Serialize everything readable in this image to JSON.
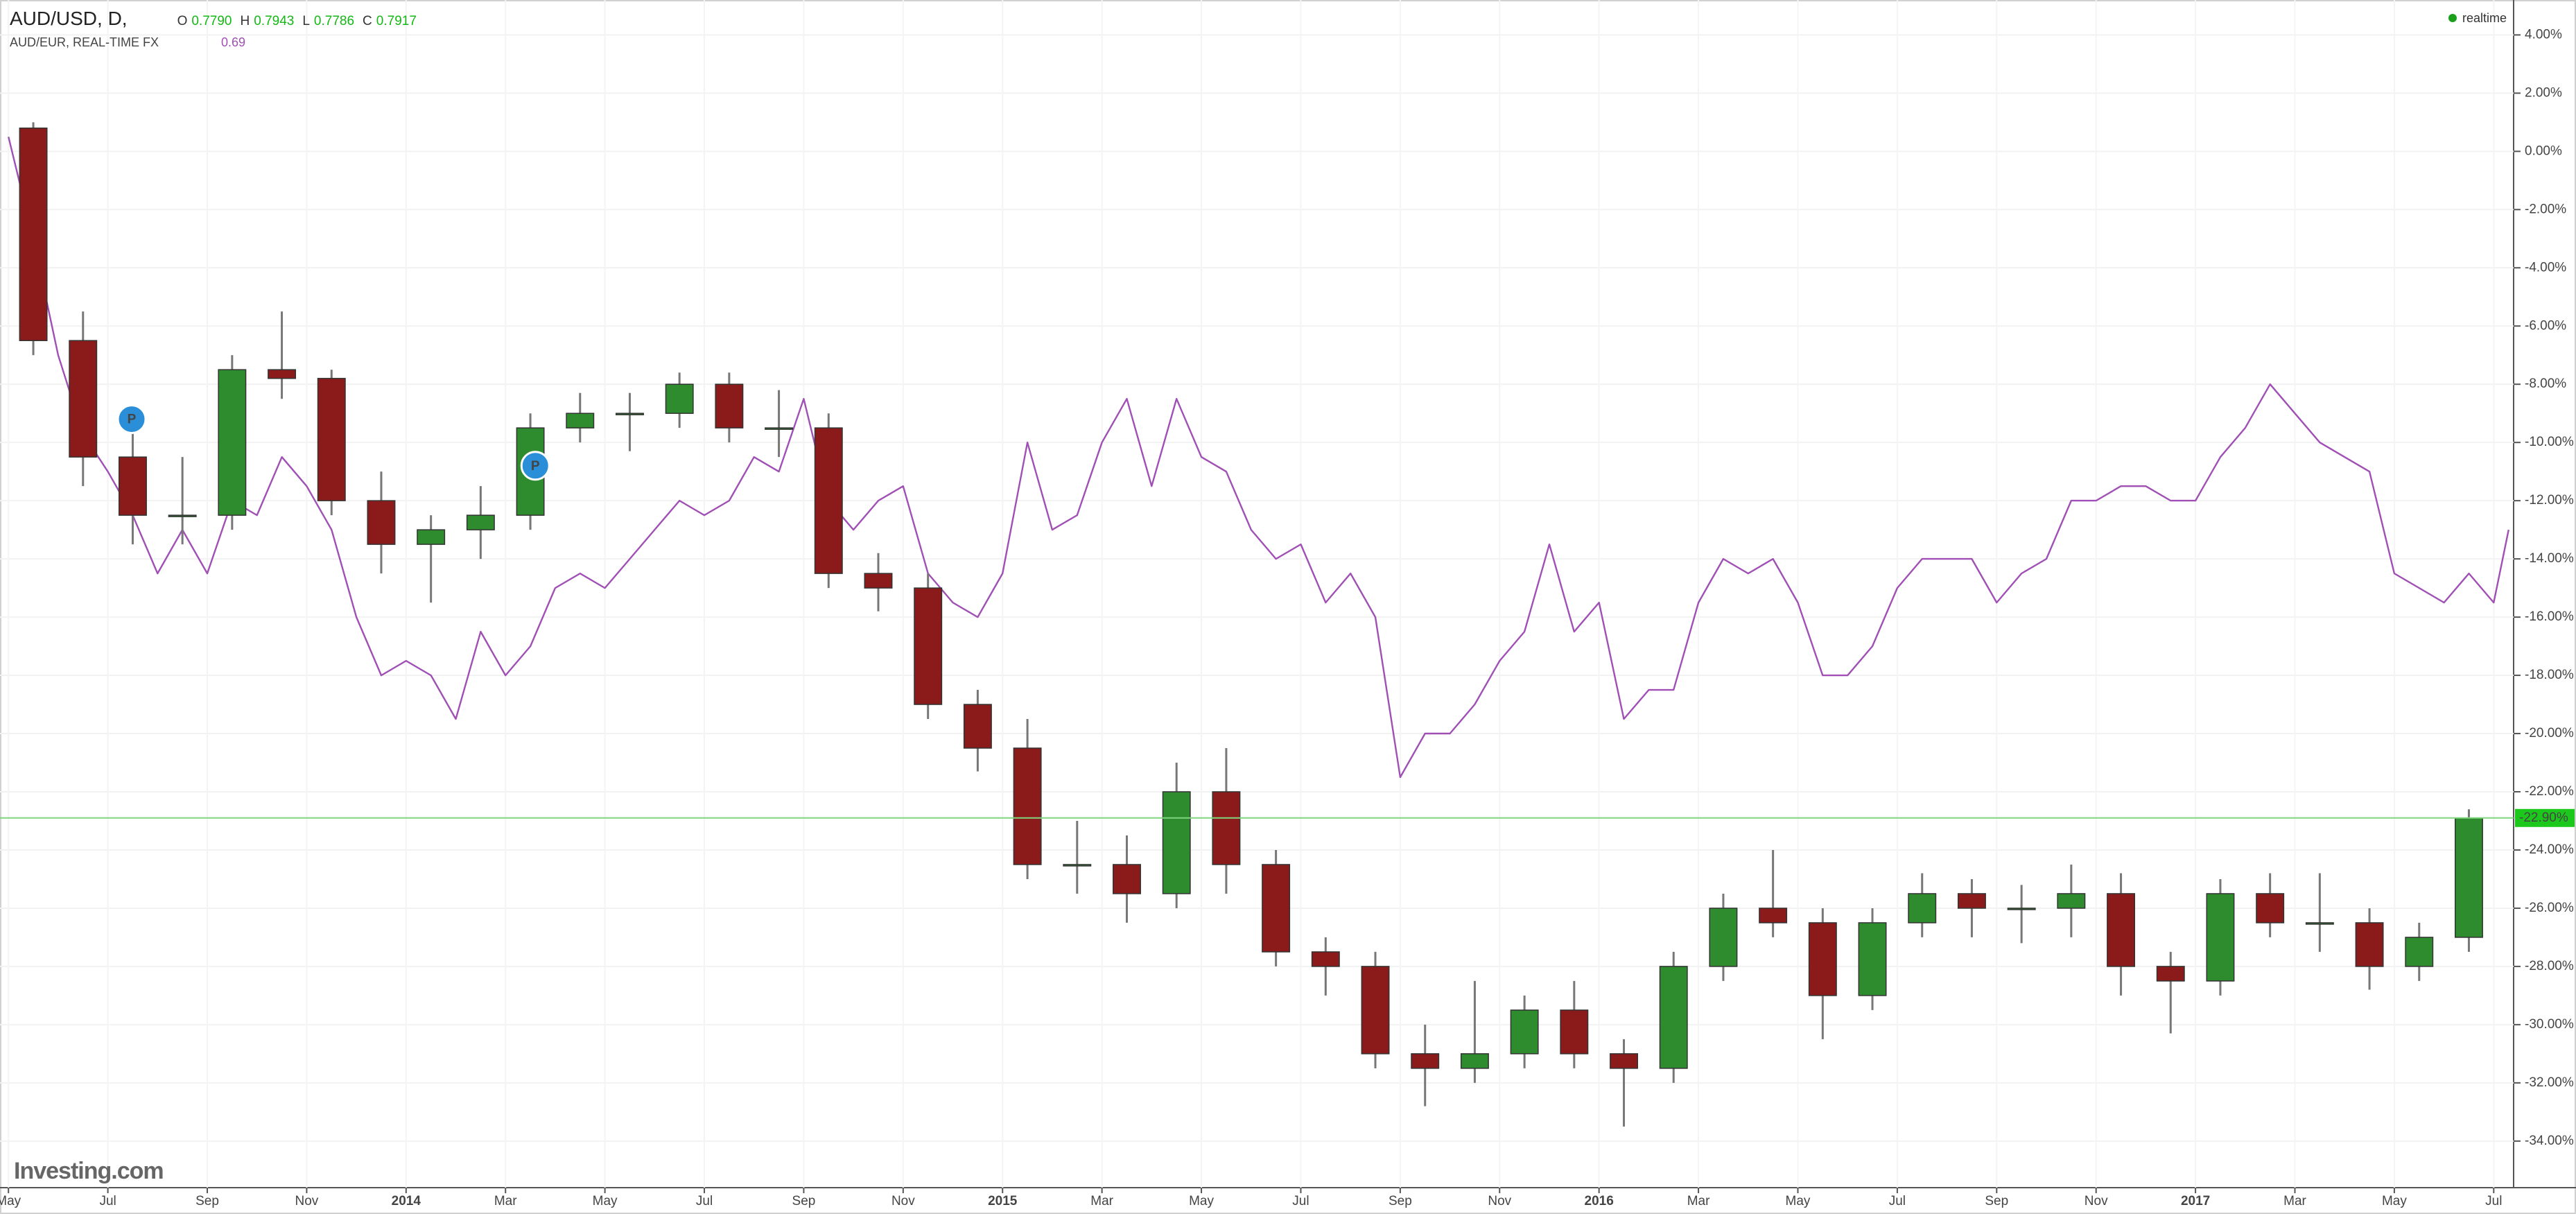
{
  "chart_data": {
    "type": "candlestick",
    "title": "AUD/USD, D,",
    "ohlc": [
      {
        "key": "O",
        "value": "0.7790"
      },
      {
        "key": "H",
        "value": "0.7943"
      },
      {
        "key": "L",
        "value": "0.7786"
      },
      {
        "key": "C",
        "value": "0.7917"
      }
    ],
    "status": "realtime",
    "watermark": "Investing.com",
    "up_color": "#2e8b2e",
    "down_color": "#8b1a1a",
    "x": [
      4.5,
      5.5,
      6.5,
      7.5,
      8.5,
      9.5,
      10.5,
      11.5,
      12.5,
      13.5,
      14.5,
      15.5,
      16.5,
      17.5,
      18.5,
      19.5,
      20.5,
      21.5,
      22.5,
      23.5,
      24.5,
      25.5,
      26.5,
      27.5,
      28.5,
      29.5,
      30.5,
      31.5,
      32.5,
      33.5,
      34.5,
      35.5,
      36.5,
      37.5,
      38.5,
      39.5,
      40.5,
      41.5,
      42.5,
      43.5,
      44.5,
      45.5,
      46.5,
      47.5,
      48.5,
      49.5,
      50.5,
      51.5,
      52.5,
      53.5
    ],
    "open": [
      0.8,
      -6.5,
      -10.5,
      -12.5,
      -12.5,
      -7.5,
      -7.8,
      -12,
      -13.5,
      -13,
      -12.5,
      -9.5,
      -9,
      -9,
      -8,
      -9.5,
      -9.5,
      -14.5,
      -15,
      -19,
      -20.5,
      -24.5,
      -24.5,
      -25.5,
      -22,
      -24.5,
      -27.5,
      -28,
      -31,
      -31.5,
      -31,
      -29.5,
      -31,
      -31.5,
      -28,
      -26,
      -26.5,
      -29,
      -26.5,
      -25.5,
      -26,
      -26,
      -25.5,
      -28,
      -28.5,
      -25.5,
      -26.5,
      -26.5,
      -28,
      -27
    ],
    "high": [
      1.0,
      -5.5,
      -9.5,
      -10.5,
      -7,
      -5.5,
      -7.5,
      -11,
      -12.5,
      -11.5,
      -9,
      -8.3,
      -8.3,
      -7.6,
      -7.6,
      -8.2,
      -9,
      -13.8,
      -14.5,
      -18.5,
      -19.5,
      -23,
      -23.5,
      -21,
      -20.5,
      -24,
      -27,
      -27.5,
      -30,
      -28.5,
      -29,
      -28.5,
      -30.5,
      -27.5,
      -25.5,
      -24,
      -26,
      -26,
      -24.8,
      -25,
      -25.2,
      -24.5,
      -24.8,
      -27.5,
      -25,
      -24.8,
      -24.8,
      -26,
      -26.5,
      -22.6
    ],
    "low": [
      -7,
      -11.5,
      -13.5,
      -13.5,
      -13,
      -8.5,
      -12.5,
      -14.5,
      -15.5,
      -14,
      -13,
      -10,
      -10.3,
      -9.5,
      -10,
      -10.5,
      -15,
      -15.8,
      -19.5,
      -21.3,
      -25,
      -25.5,
      -26.5,
      -26,
      -25.5,
      -28,
      -29,
      -31.5,
      -32.8,
      -32,
      -31.5,
      -31.5,
      -33.5,
      -32,
      -28.5,
      -27,
      -30.5,
      -29.5,
      -27,
      -27,
      -27.2,
      -27,
      -29,
      -30.3,
      -29,
      -27,
      -27.5,
      -28.8,
      -28.5,
      -27.5
    ],
    "close": [
      -6.5,
      -10.5,
      -12.5,
      -12.5,
      -7.5,
      -7.8,
      -12,
      -13.5,
      -13,
      -12.5,
      -9.5,
      -9,
      -9,
      -8,
      -9.5,
      -9.5,
      -14.5,
      -15,
      -19,
      -20.5,
      -24.5,
      -24.5,
      -25.5,
      -22,
      -24.5,
      -27.5,
      -28,
      -31,
      -31.5,
      -31,
      -29.5,
      -31,
      -31.5,
      -28,
      -26,
      -26.5,
      -29,
      -26.5,
      -25.5,
      -26,
      -26,
      -25.5,
      -28,
      -28.5,
      -25.5,
      -26.5,
      -26.5,
      -28,
      -27,
      -22.9
    ],
    "overlay": {
      "type": "line",
      "name": "AUD/EUR, REAL-TIME FX",
      "last_value": "0.69",
      "color": "#a050b4",
      "x": [
        4,
        4.5,
        5,
        5.5,
        6,
        6.5,
        7,
        7.5,
        8,
        8.5,
        9,
        9.5,
        10,
        10.5,
        11,
        11.5,
        12,
        12.5,
        13,
        13.5,
        14,
        14.5,
        15,
        15.5,
        16,
        16.5,
        17,
        17.5,
        18,
        18.5,
        19,
        19.5,
        20,
        20.5,
        21,
        21.5,
        22,
        22.5,
        23,
        23.5,
        24,
        24.5,
        25,
        25.5,
        26,
        26.5,
        27,
        27.5,
        28,
        28.5,
        29,
        29.5,
        30,
        30.5,
        31,
        31.5,
        32,
        32.5,
        33,
        33.5,
        34,
        34.5,
        35,
        35.5,
        36,
        36.5,
        37,
        37.5,
        38,
        38.5,
        39,
        39.5,
        40,
        40.5,
        41,
        41.5,
        42,
        42.5,
        43,
        43.5,
        44,
        44.5,
        45,
        45.5,
        46,
        46.5,
        47,
        47.5,
        48,
        48.5,
        49,
        49.5,
        50,
        50.5,
        51,
        51.5,
        52,
        52.5,
        53,
        53.5,
        54,
        54.3
      ],
      "values": [
        0.5,
        -3,
        -7,
        -9.7,
        -11,
        -12.5,
        -14.5,
        -13,
        -14.5,
        -12,
        -12.5,
        -10.5,
        -11.5,
        -13,
        -16,
        -18,
        -17.5,
        -18,
        -19.5,
        -16.5,
        -18,
        -17,
        -15,
        -14.5,
        -15,
        -14,
        -13,
        -12,
        -12.5,
        -12,
        -10.5,
        -11,
        -8.5,
        -12,
        -13,
        -12,
        -11.5,
        -14.5,
        -15.5,
        -16,
        -14.5,
        -10,
        -13,
        -12.5,
        -10,
        -8.5,
        -11.5,
        -8.5,
        -10.5,
        -11,
        -13,
        -14,
        -13.5,
        -15.5,
        -14.5,
        -16,
        -21.5,
        -20,
        -20,
        -19,
        -17.5,
        -16.5,
        -13.5,
        -16.5,
        -15.5,
        -19.5,
        -18.5,
        -18.5,
        -15.5,
        -14,
        -14.5,
        -14,
        -15.5,
        -18,
        -18,
        -17,
        -15,
        -14,
        -14,
        -14,
        -15.5,
        -14.5,
        -14,
        -12,
        -12,
        -11.5,
        -11.5,
        -12,
        -12,
        -10.5,
        -9.5,
        -8,
        -9,
        -10,
        -10.5,
        -11,
        -14.5,
        -15,
        -15.5,
        -14.5,
        -15.5,
        -13
      ]
    },
    "annotations": [
      {
        "label": "P",
        "x": 6.48,
        "y": -9.2
      },
      {
        "label": "P",
        "x": 14.6,
        "y": -10.8
      }
    ],
    "last": {
      "value": -22.9,
      "label": "-22.90%"
    },
    "xlim": [
      3.83,
      54.4
    ],
    "ylim": [
      -35.6,
      5.2
    ],
    "xticks": [
      {
        "value": 4,
        "label": "May"
      },
      {
        "value": 6,
        "label": "Jul"
      },
      {
        "value": 8,
        "label": "Sep"
      },
      {
        "value": 10,
        "label": "Nov"
      },
      {
        "value": 12,
        "label": "2014"
      },
      {
        "value": 14,
        "label": "Mar"
      },
      {
        "value": 16,
        "label": "May"
      },
      {
        "value": 18,
        "label": "Jul"
      },
      {
        "value": 20,
        "label": "Sep"
      },
      {
        "value": 22,
        "label": "Nov"
      },
      {
        "value": 24,
        "label": "2015"
      },
      {
        "value": 26,
        "label": "Mar"
      },
      {
        "value": 28,
        "label": "May"
      },
      {
        "value": 30,
        "label": "Jul"
      },
      {
        "value": 32,
        "label": "Sep"
      },
      {
        "value": 34,
        "label": "Nov"
      },
      {
        "value": 36,
        "label": "2016"
      },
      {
        "value": 38,
        "label": "Mar"
      },
      {
        "value": 40,
        "label": "May"
      },
      {
        "value": 42,
        "label": "Jul"
      },
      {
        "value": 44,
        "label": "Sep"
      },
      {
        "value": 46,
        "label": "Nov"
      },
      {
        "value": 48,
        "label": "2017"
      },
      {
        "value": 50,
        "label": "Mar"
      },
      {
        "value": 52,
        "label": "May"
      },
      {
        "value": 54,
        "label": "Jul"
      }
    ],
    "yticks": [
      {
        "value": 4,
        "label": "4.00%"
      },
      {
        "value": 2,
        "label": "2.00%"
      },
      {
        "value": 0,
        "label": "0.00%"
      },
      {
        "value": -2,
        "label": "-2.00%"
      },
      {
        "value": -4,
        "label": "-4.00%"
      },
      {
        "value": -6,
        "label": "-6.00%"
      },
      {
        "value": -8,
        "label": "-8.00%"
      },
      {
        "value": -10,
        "label": "-10.00%"
      },
      {
        "value": -12,
        "label": "-12.00%"
      },
      {
        "value": -14,
        "label": "-14.00%"
      },
      {
        "value": -16,
        "label": "-16.00%"
      },
      {
        "value": -18,
        "label": "-18.00%"
      },
      {
        "value": -20,
        "label": "-20.00%"
      },
      {
        "value": -22,
        "label": "-22.00%"
      },
      {
        "value": -24,
        "label": "-24.00%"
      },
      {
        "value": -26,
        "label": "-26.00%"
      },
      {
        "value": -28,
        "label": "-28.00%"
      },
      {
        "value": -30,
        "label": "-30.00%"
      },
      {
        "value": -32,
        "label": "-32.00%"
      },
      {
        "value": -34,
        "label": "-34.00%"
      }
    ],
    "grid": true
  }
}
